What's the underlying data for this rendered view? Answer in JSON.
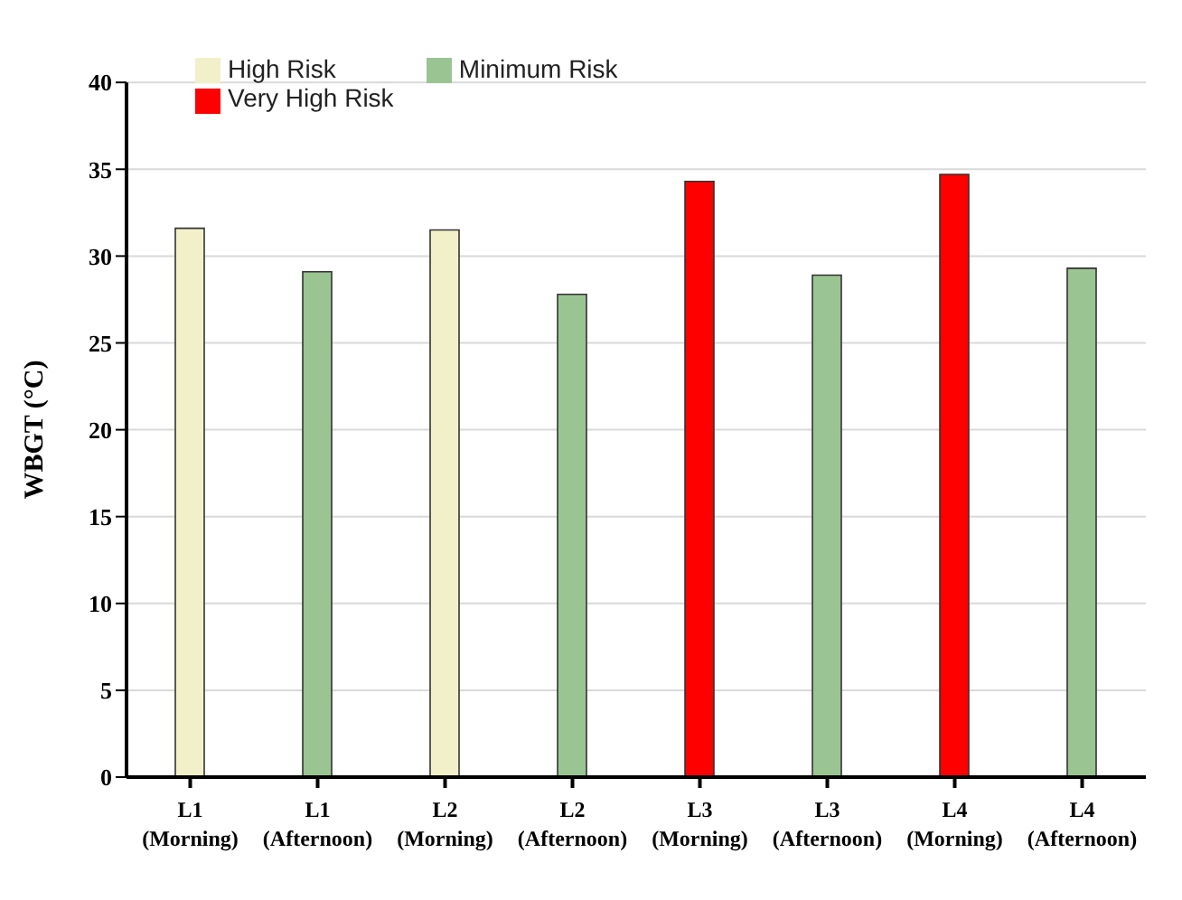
{
  "chart_data": {
    "type": "bar",
    "ylabel": "WBGT (°C)",
    "categories": [
      "L1 (Morning)",
      "L1 (Afternoon)",
      "L2 (Morning)",
      "L2 (Afternoon)",
      "L3 (Morning)",
      "L3 (Afternoon)",
      "L4 (Morning)",
      "L4 (Afternoon)"
    ],
    "series": [
      {
        "name": "High Risk",
        "color": "#f2f0c8",
        "values": [
          31.6,
          null,
          31.5,
          null,
          null,
          null,
          null,
          null
        ]
      },
      {
        "name": "Very High Risk",
        "color": "#ff0000",
        "values": [
          null,
          null,
          null,
          null,
          34.3,
          null,
          34.7,
          null
        ]
      },
      {
        "name": "Minimum Risk",
        "color": "#9bc493",
        "values": [
          null,
          29.1,
          null,
          27.8,
          null,
          28.9,
          null,
          29.3
        ]
      }
    ],
    "stacked": true,
    "ylim": [
      0,
      40
    ],
    "yticks": [
      0,
      5,
      10,
      15,
      20,
      25,
      30,
      35,
      40
    ],
    "grid": "y",
    "legend": "top left"
  }
}
